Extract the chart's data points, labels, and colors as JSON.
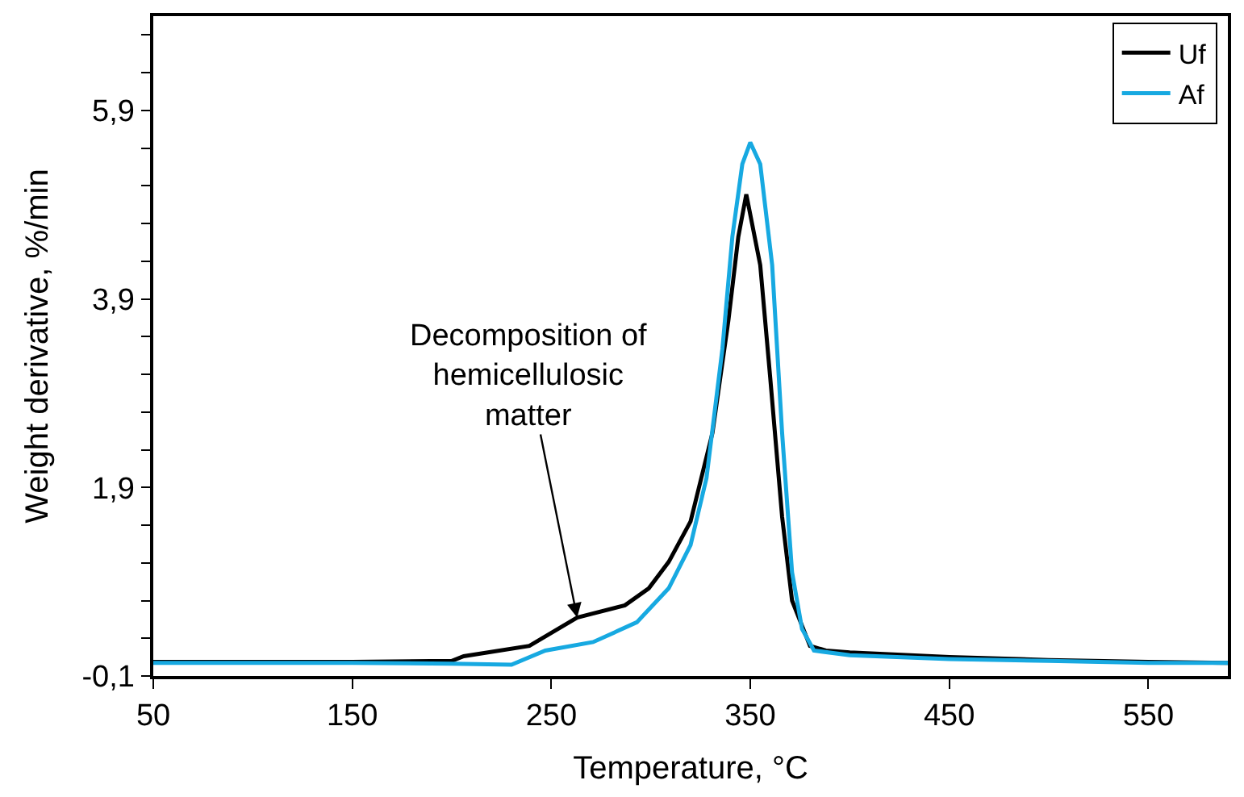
{
  "chart_data": {
    "type": "line",
    "xlabel": "Temperature, °C",
    "ylabel": "Weight derivative, %/min",
    "xlim": [
      50,
      590
    ],
    "xticks": [
      50,
      150,
      250,
      350,
      450,
      550
    ],
    "ylim": [
      -0.1,
      6.9
    ],
    "yticks": [
      {
        "value": -0.1,
        "label": "-0,1"
      },
      {
        "value": 0.3,
        "label": null
      },
      {
        "value": 0.7,
        "label": null
      },
      {
        "value": 1.1,
        "label": null
      },
      {
        "value": 1.5,
        "label": null
      },
      {
        "value": 1.9,
        "label": "1,9"
      },
      {
        "value": 2.3,
        "label": null
      },
      {
        "value": 2.7,
        "label": null
      },
      {
        "value": 3.1,
        "label": null
      },
      {
        "value": 3.5,
        "label": null
      },
      {
        "value": 3.9,
        "label": "3,9"
      },
      {
        "value": 4.3,
        "label": null
      },
      {
        "value": 4.7,
        "label": null
      },
      {
        "value": 5.1,
        "label": null
      },
      {
        "value": 5.5,
        "label": null
      },
      {
        "value": 5.9,
        "label": "5,9"
      },
      {
        "value": 6.3,
        "label": null
      },
      {
        "value": 6.7,
        "label": null
      }
    ],
    "legend": "top right",
    "marker": "none",
    "line_style": "solid",
    "series": [
      {
        "name": "Uf",
        "color": "#000000",
        "x": [
          50,
          100,
          150,
          200,
          206,
          239,
          263,
          287,
          299,
          309,
          320,
          331,
          339,
          344,
          348,
          355,
          360,
          366,
          371,
          380,
          388,
          400,
          450,
          500,
          550,
          590
        ],
        "values": [
          0.05,
          0.05,
          0.05,
          0.06,
          0.11,
          0.22,
          0.52,
          0.65,
          0.83,
          1.11,
          1.54,
          2.48,
          3.67,
          4.56,
          5.01,
          4.26,
          3.07,
          1.59,
          0.7,
          0.22,
          0.17,
          0.15,
          0.1,
          0.07,
          0.05,
          0.04
        ]
      },
      {
        "name": "Af",
        "color": "#17a9e1",
        "x": [
          50,
          100,
          150,
          200,
          230,
          247,
          271,
          293,
          309,
          320,
          328,
          336,
          341,
          346,
          350,
          355,
          361,
          366,
          371,
          376,
          382,
          400,
          450,
          500,
          550,
          590
        ],
        "values": [
          0.04,
          0.04,
          0.04,
          0.03,
          0.02,
          0.17,
          0.26,
          0.47,
          0.83,
          1.29,
          2.0,
          3.37,
          4.56,
          5.33,
          5.56,
          5.33,
          4.26,
          2.48,
          1.0,
          0.4,
          0.17,
          0.12,
          0.08,
          0.06,
          0.04,
          0.04
        ]
      }
    ],
    "annotations": [
      {
        "text": "Decomposition of\nhemicellulosic\nmatter",
        "x": 263,
        "y": 0.52
      }
    ]
  }
}
